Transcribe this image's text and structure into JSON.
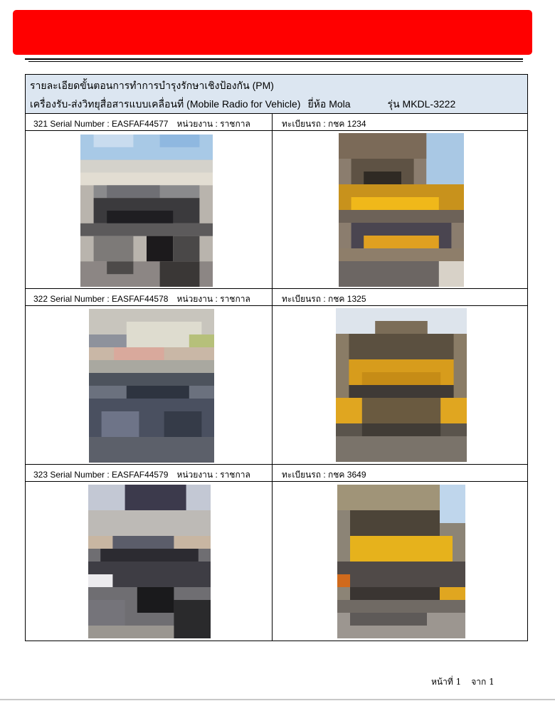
{
  "header_band": {
    "color": "#ff0000"
  },
  "title": {
    "line1": "รายละเอียดขั้นตอนการทำการบำรุงรักษาเชิงป้องกัน (PM)",
    "line2_device": "เครื่องรับ-ส่งวิทยุสื่อสารแบบเคลื่อนที่ (Mobile Radio for Vehicle)",
    "line2_brand": "ยี่ห้อ Mola",
    "line2_model": "รุ่น MKDL-3222",
    "background": "#dce6f1"
  },
  "records": [
    {
      "serial_text": "321 Serial Number :  EASFAF44577",
      "unit_text": "หน่วยงาน : ราชกาล",
      "plate_text": "ทะเบียนรถ : กชค 1234",
      "photo_left": "radio-installation-photo",
      "photo_right": "vehicle-photo"
    },
    {
      "serial_text": "322 Serial Number :  EASFAF44578",
      "unit_text": "หน่วยงาน : ราชกาล",
      "plate_text": "ทะเบียนรถ : กชค 1325",
      "photo_left": "radio-installation-photo",
      "photo_right": "vehicle-photo"
    },
    {
      "serial_text": "323 Serial Number :  EASFAF44579",
      "unit_text": "หน่วยงาน : ราชกาล",
      "plate_text": "ทะเบียนรถ : กชค 3649",
      "photo_left": "radio-installation-photo",
      "photo_right": "vehicle-photo"
    }
  ],
  "footer": {
    "page_label": "หน้าที่ 1",
    "total_label": "จาก 1"
  }
}
